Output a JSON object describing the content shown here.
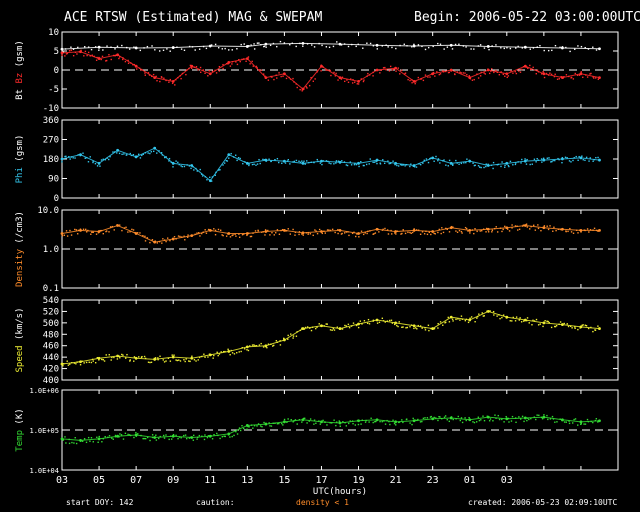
{
  "header": {
    "title": "ACE RTSW (Estimated) MAG & SWEPAM",
    "begin": "Begin: 2006-05-22 03:00:00UTC"
  },
  "footer": {
    "start_doy": "start DOY: 142",
    "caution": "caution:",
    "density_note": "density < 1",
    "created": "created: 2006-05-23 02:09:10UTC"
  },
  "colors": {
    "bt": "#ffffff",
    "bz": "#ff2a2a",
    "phi": "#33c7ee",
    "density": "#ff8c2a",
    "speed": "#eeee33",
    "temp": "#33dd33",
    "axes": "#ffffff",
    "background": "#000000"
  },
  "chart_data": [
    {
      "type": "scatter",
      "name": "mag",
      "ylabel": "Bt Bz (gsm)",
      "ylabel_parts": [
        {
          "text": "Bt",
          "color": "#ffffff"
        },
        {
          "text": "Bz",
          "color": "#ff2a2a"
        },
        {
          "text": "(gsm)",
          "color": "#ffffff"
        }
      ],
      "ylim": [
        -10,
        10
      ],
      "yticks": [
        -10,
        -5,
        0,
        5,
        10
      ],
      "ytick_labels": [
        "-10",
        "-5",
        "0",
        "5",
        "10"
      ],
      "reference_line": 0,
      "series": [
        {
          "name": "Bt",
          "color": "#ffffff",
          "x": [
            0,
            2,
            4,
            6,
            8,
            10,
            11,
            13,
            15,
            17,
            19,
            21,
            23,
            25,
            27,
            29
          ],
          "y": [
            5.5,
            6,
            5.8,
            5.9,
            6.3,
            6.2,
            6.8,
            7,
            6.8,
            6.5,
            6.3,
            6.5,
            6.2,
            6,
            5.8,
            5.6
          ]
        },
        {
          "name": "Bz",
          "color": "#ff2a2a",
          "x": [
            0,
            1,
            2,
            3,
            4,
            5,
            6,
            7,
            8,
            9,
            10,
            11,
            12,
            13,
            14,
            15,
            16,
            17,
            18,
            19,
            20,
            21,
            22,
            23,
            24,
            25,
            26,
            27,
            28,
            29
          ],
          "y": [
            4.5,
            4.8,
            3,
            4,
            1,
            -2,
            -3,
            1,
            -1,
            2,
            3,
            -2,
            -1,
            -5,
            1,
            -2,
            -3,
            0,
            0.5,
            -3,
            -1,
            0,
            -2,
            0,
            -1,
            1,
            -1,
            -2,
            -1,
            -2
          ]
        }
      ]
    },
    {
      "type": "scatter",
      "name": "phi",
      "ylabel": "Phi (gsm)",
      "ylabel_parts": [
        {
          "text": "Phi",
          "color": "#33c7ee"
        },
        {
          "text": "(gsm)",
          "color": "#ffffff"
        }
      ],
      "ylim": [
        0,
        360
      ],
      "yticks": [
        0,
        90,
        180,
        270,
        360
      ],
      "ytick_labels": [
        "0",
        "90",
        "180",
        "270",
        "360"
      ],
      "series": [
        {
          "name": "Phi",
          "color": "#33c7ee",
          "x": [
            0,
            1,
            2,
            3,
            4,
            5,
            6,
            7,
            8,
            9,
            10,
            11,
            12,
            13,
            14,
            15,
            16,
            17,
            18,
            19,
            20,
            21,
            22,
            23,
            24,
            25,
            26,
            27,
            28,
            29
          ],
          "y": [
            180,
            200,
            160,
            220,
            190,
            230,
            160,
            150,
            80,
            200,
            160,
            175,
            170,
            160,
            170,
            165,
            160,
            175,
            160,
            150,
            185,
            160,
            170,
            150,
            160,
            170,
            175,
            180,
            185,
            175
          ]
        }
      ]
    },
    {
      "type": "scatter",
      "name": "density",
      "ylabel": "Density (/cm3)",
      "ylabel_parts": [
        {
          "text": "Density",
          "color": "#ff8c2a"
        },
        {
          "text": "(/cm3)",
          "color": "#ffffff"
        }
      ],
      "yscale": "log",
      "ylim": [
        0.1,
        10
      ],
      "yticks": [
        0.1,
        1,
        10
      ],
      "ytick_labels": [
        "0.1",
        "1.0",
        "10.0"
      ],
      "reference_line": 1,
      "series": [
        {
          "name": "Density",
          "color": "#ff8c2a",
          "x": [
            0,
            1,
            2,
            3,
            4,
            5,
            6,
            7,
            8,
            9,
            10,
            11,
            12,
            13,
            14,
            15,
            16,
            17,
            18,
            19,
            20,
            21,
            22,
            23,
            24,
            25,
            26,
            27,
            28,
            29
          ],
          "y": [
            2.5,
            3,
            2.8,
            4,
            2.5,
            1.5,
            1.8,
            2.2,
            3,
            2.5,
            2.5,
            2.8,
            3,
            2.6,
            2.8,
            3,
            2.5,
            3.2,
            2.8,
            3,
            2.8,
            3.5,
            3,
            3.2,
            3.5,
            4,
            3.5,
            3.2,
            3,
            3
          ]
        }
      ]
    },
    {
      "type": "scatter",
      "name": "speed",
      "ylabel": "Speed (km/s)",
      "ylabel_parts": [
        {
          "text": "Speed",
          "color": "#eeee33"
        },
        {
          "text": "(km/s)",
          "color": "#ffffff"
        }
      ],
      "ylim": [
        400,
        540
      ],
      "yticks": [
        400,
        420,
        440,
        460,
        480,
        500,
        520,
        540
      ],
      "ytick_labels": [
        "400",
        "420",
        "440",
        "460",
        "480",
        "500",
        "520",
        "540"
      ],
      "series": [
        {
          "name": "Speed",
          "color": "#eeee33",
          "x": [
            0,
            1,
            2,
            3,
            4,
            5,
            6,
            7,
            8,
            9,
            10,
            11,
            12,
            13,
            14,
            15,
            16,
            17,
            18,
            19,
            20,
            21,
            22,
            23,
            24,
            25,
            26,
            27,
            28,
            29
          ],
          "y": [
            428,
            432,
            438,
            442,
            438,
            436,
            440,
            438,
            444,
            450,
            458,
            460,
            470,
            490,
            495,
            490,
            498,
            505,
            500,
            495,
            490,
            510,
            505,
            520,
            510,
            505,
            500,
            497,
            493,
            490
          ]
        }
      ]
    },
    {
      "type": "scatter",
      "name": "temp",
      "ylabel": "Temp (K)",
      "ylabel_parts": [
        {
          "text": "Temp",
          "color": "#33dd33"
        },
        {
          "text": "(K)",
          "color": "#ffffff"
        }
      ],
      "yscale": "log",
      "ylim": [
        10000,
        1000000
      ],
      "yticks": [
        10000,
        100000,
        1000000
      ],
      "ytick_labels": [
        "1.0E+04",
        "1.0E+05",
        "1.0E+06"
      ],
      "reference_line": 100000,
      "series": [
        {
          "name": "Temp",
          "color": "#33dd33",
          "x": [
            0,
            1,
            2,
            3,
            4,
            5,
            6,
            7,
            8,
            9,
            10,
            11,
            12,
            13,
            14,
            15,
            16,
            17,
            18,
            19,
            20,
            21,
            22,
            23,
            24,
            25,
            26,
            27,
            28,
            29
          ],
          "y": [
            60000,
            55000,
            60000,
            70000,
            75000,
            65000,
            70000,
            65000,
            70000,
            80000,
            130000,
            140000,
            160000,
            180000,
            160000,
            150000,
            170000,
            180000,
            160000,
            170000,
            190000,
            200000,
            180000,
            210000,
            190000,
            200000,
            210000,
            180000,
            160000,
            170000
          ]
        }
      ]
    }
  ],
  "x_axis": {
    "xlabel": "UTC(hours)",
    "xlim": [
      0,
      30
    ],
    "ticks": [
      0,
      2,
      4,
      6,
      8,
      10,
      12,
      14,
      16,
      18,
      20,
      22,
      24,
      26,
      28,
      30
    ],
    "tick_labels": [
      "03",
      "05",
      "07",
      "09",
      "11",
      "13",
      "15",
      "17",
      "19",
      "21",
      "23",
      "01",
      "03"
    ],
    "label_ticks": [
      0,
      2,
      4,
      6,
      8,
      10,
      12,
      14,
      16,
      18,
      20,
      22,
      24
    ],
    "label_ticks_scaled": [
      0,
      2.0,
      4.0,
      6.0,
      8.0,
      10.0,
      12.0,
      14.0,
      16.0,
      18.0,
      20.0,
      22.0,
      24.0
    ]
  }
}
